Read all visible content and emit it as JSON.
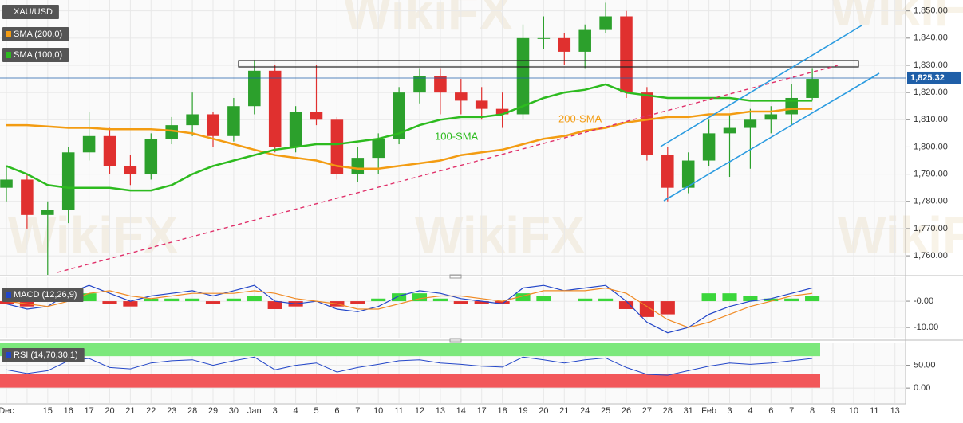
{
  "chart_data": [
    {
      "type": "candlestick",
      "symbol": "XAU/USD",
      "categories": [
        "Dec",
        null,
        "15",
        "16",
        "17",
        "20",
        "21",
        "22",
        "23",
        "28",
        "29",
        "30",
        "Jan",
        "3",
        "4",
        "5",
        "6",
        "7",
        "10",
        "11",
        "12",
        "13",
        "14",
        "17",
        "18",
        "19",
        "20",
        "21",
        "24",
        "25",
        "26",
        "27",
        "28",
        "31",
        "Feb",
        "3",
        "4",
        "6",
        "7",
        "8",
        "9",
        "10",
        "11",
        "13"
      ],
      "open": [
        1785,
        1788,
        1775,
        1777,
        1798,
        1804,
        1793,
        1790,
        1803,
        1808,
        1812,
        1804,
        1815,
        1828,
        1800,
        1813,
        1810,
        1790,
        1796,
        1803,
        1820,
        1826,
        1820,
        1817,
        1814,
        1812,
        1840,
        1840,
        1835,
        1843,
        1848,
        1820,
        1797,
        1785,
        1795,
        1805,
        1807,
        1810,
        1812,
        1818,
        null,
        null,
        null,
        null
      ],
      "high": [
        1793,
        1790,
        1780,
        1800,
        1813,
        1807,
        1797,
        1805,
        1811,
        1820,
        1813,
        1818,
        1832,
        1830,
        1815,
        1830,
        1811,
        1800,
        1805,
        1822,
        1829,
        1829,
        1825,
        1822,
        1820,
        1845,
        1848,
        1842,
        1845,
        1853,
        1850,
        1822,
        1800,
        1798,
        1810,
        1812,
        1814,
        1815,
        1823,
        1829,
        null,
        null,
        null,
        null
      ],
      "low": [
        1780,
        1770,
        1753,
        1772,
        1795,
        1790,
        1786,
        1788,
        1801,
        1804,
        1800,
        1802,
        1812,
        1798,
        1798,
        1808,
        1788,
        1787,
        1790,
        1801,
        1816,
        1812,
        1812,
        1810,
        1807,
        1810,
        1836,
        1830,
        1829,
        1842,
        1818,
        1795,
        1780,
        1783,
        1793,
        1789,
        1792,
        1805,
        1808,
        1817,
        null,
        null,
        null,
        null
      ],
      "close": [
        1788,
        1775,
        1777,
        1798,
        1804,
        1793,
        1790,
        1803,
        1808,
        1812,
        1804,
        1815,
        1828,
        1800,
        1813,
        1810,
        1790,
        1796,
        1803,
        1820,
        1826,
        1820,
        1817,
        1814,
        1812,
        1840,
        1840,
        1835,
        1843,
        1848,
        1820,
        1797,
        1785,
        1795,
        1805,
        1807,
        1810,
        1812,
        1818,
        1825,
        null,
        null,
        null,
        null
      ],
      "up_color": "#2ca02c",
      "down_color": "#e0302f",
      "last_price": 1825.32,
      "last_price_label": "1,825.32",
      "lines": [
        {
          "name": "SMA (200,0)",
          "label": "200-SMA",
          "color": "#f39c12",
          "values": [
            1808,
            1808,
            1807.5,
            1807,
            1807,
            1806.5,
            1806.5,
            1806.5,
            1806,
            1805,
            1803,
            1801,
            1799,
            1797,
            1796,
            1795,
            1793,
            1792,
            1792,
            1793,
            1794,
            1795,
            1797,
            1798,
            1799,
            1801,
            1803,
            1804,
            1806,
            1807,
            1809,
            1810,
            1811,
            1811,
            1812,
            1812,
            1813,
            1813,
            1814,
            1814,
            null,
            null,
            null,
            null
          ]
        },
        {
          "name": "SMA (100,0)",
          "label": "100-SMA",
          "color": "#2dbb1f",
          "values": [
            1793,
            1790,
            1786,
            1785,
            1785,
            1785,
            1784,
            1784,
            1786,
            1790,
            1793,
            1795,
            1797,
            1799,
            1800,
            1801,
            1801,
            1802,
            1803,
            1805,
            1808,
            1810,
            1811,
            1811,
            1812,
            1815,
            1818,
            1820,
            1821,
            1823,
            1820,
            1819,
            1818,
            1818,
            1818,
            1818,
            1817,
            1817,
            1817,
            1817,
            null,
            null,
            null,
            null
          ]
        }
      ],
      "ylim": [
        1753,
        1854
      ],
      "yticks": [
        {
          "value": 1760,
          "label": "1,760.00"
        },
        {
          "value": 1770,
          "label": "1,770.00"
        },
        {
          "value": 1780,
          "label": "1,780.00"
        },
        {
          "value": 1790,
          "label": "1,790.00"
        },
        {
          "value": 1800,
          "label": "1,800.00"
        },
        {
          "value": 1810,
          "label": "1,810.00"
        },
        {
          "value": 1820,
          "label": "1,820.00"
        },
        {
          "value": 1830,
          "label": "1,830.00"
        },
        {
          "value": 1840,
          "label": "1,840.00"
        },
        {
          "value": 1850,
          "label": "1,850.00"
        }
      ],
      "grid": true,
      "watermark": "WikiFX"
    },
    {
      "type": "macd",
      "legend": "MACD (12,26,9)",
      "series": [
        {
          "name": "MACD",
          "color": "#2346c8",
          "values": [
            -1,
            -3,
            -2,
            3,
            6,
            3,
            0,
            2,
            3,
            4,
            2,
            4,
            6,
            0,
            -1,
            0,
            -3,
            -4,
            -2,
            2,
            4,
            3,
            1,
            0,
            -1,
            5,
            6,
            4,
            5,
            6,
            0,
            -8,
            -12,
            -10,
            -5,
            -2,
            0,
            1,
            3,
            5,
            null,
            null,
            null,
            null
          ]
        },
        {
          "name": "Signal",
          "color": "#f08a24",
          "values": [
            0,
            -1,
            -2,
            0,
            3,
            4,
            2,
            1,
            2,
            3,
            3,
            3,
            4,
            3,
            1,
            0,
            -1,
            -3,
            -3,
            -1,
            1,
            2,
            2,
            1,
            0,
            2,
            4,
            4,
            4,
            5,
            3,
            -2,
            -7,
            -10,
            -8,
            -5,
            -2,
            0,
            2,
            3,
            null,
            null,
            null,
            null
          ]
        }
      ],
      "histogram": [
        -1,
        -2,
        0,
        3,
        3,
        -1,
        -2,
        1,
        1,
        1,
        -1,
        1,
        2,
        -3,
        -2,
        0,
        -2,
        -1,
        1,
        3,
        3,
        1,
        -1,
        -1,
        -1,
        3,
        2,
        0,
        1,
        1,
        -3,
        -6,
        -5,
        0,
        3,
        3,
        2,
        1,
        1,
        2,
        null,
        null,
        null,
        null
      ],
      "up_color": "#3bd63b",
      "down_color": "#e0302f",
      "ylim": [
        -13.9,
        9.1
      ],
      "yticks": [
        {
          "value": 0,
          "label": "-0.00"
        },
        {
          "value": -10,
          "label": "-10.00"
        }
      ]
    },
    {
      "type": "rsi",
      "legend": "RSI (14,70,30,1)",
      "series": [
        {
          "name": "RSI",
          "color": "#2346c8",
          "values": [
            40,
            32,
            38,
            60,
            65,
            45,
            42,
            55,
            60,
            62,
            50,
            60,
            68,
            40,
            50,
            55,
            35,
            45,
            52,
            60,
            62,
            55,
            52,
            48,
            46,
            68,
            62,
            55,
            62,
            66,
            45,
            30,
            28,
            38,
            48,
            55,
            52,
            55,
            60,
            65,
            null,
            null,
            null,
            null
          ]
        }
      ],
      "overbought": 70,
      "oversold": 30,
      "top": 100,
      "bottom": 0,
      "overbought_color": "#7ce87c",
      "oversold_color": "#f2575a",
      "ylim": [
        -33,
        100
      ],
      "yticks": [
        {
          "value": 50,
          "label": "50.00"
        },
        {
          "value": 0,
          "label": "0.00"
        }
      ]
    }
  ]
}
